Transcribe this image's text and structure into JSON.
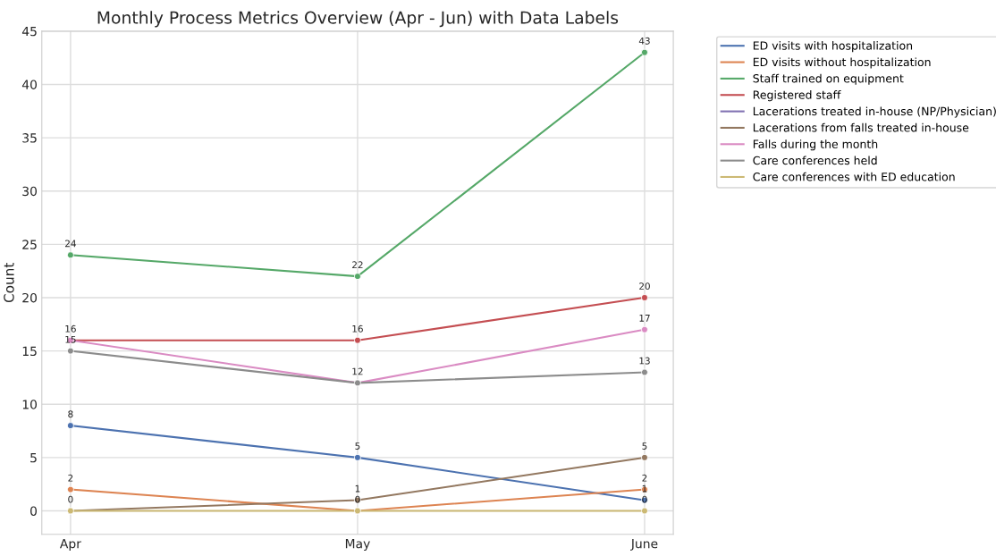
{
  "chart_data": {
    "type": "line",
    "title": "Monthly Process Metrics Overview (Apr - Jun) with Data Labels",
    "ylabel": "Count",
    "categories": [
      "Apr",
      "May",
      "June"
    ],
    "series": [
      {
        "name": "ED visits with hospitalization",
        "color": "#4c72b0",
        "values": [
          8,
          5,
          1
        ]
      },
      {
        "name": "ED visits without hospitalization",
        "color": "#dd8452",
        "values": [
          2,
          0,
          2
        ]
      },
      {
        "name": "Staff trained on equipment",
        "color": "#55a868",
        "values": [
          24,
          22,
          43
        ]
      },
      {
        "name": "Registered staff",
        "color": "#c44e52",
        "values": [
          16,
          16,
          20
        ]
      },
      {
        "name": "Lacerations treated in-house (NP/Physician)",
        "color": "#8172b3",
        "values": [
          null,
          null,
          null
        ]
      },
      {
        "name": "Lacerations from falls treated in-house",
        "color": "#937860",
        "values": [
          0,
          1,
          5
        ]
      },
      {
        "name": "Falls during the month",
        "color": "#da8bc3",
        "values": [
          16,
          12,
          17
        ],
        "value_labels": [
          null,
          "12",
          "17"
        ]
      },
      {
        "name": "Care conferences held",
        "color": "#8c8c8c",
        "values": [
          15,
          12,
          13
        ],
        "value_labels": [
          "15",
          null,
          "13"
        ]
      },
      {
        "name": "Care conferences with ED education",
        "color": "#ccb974",
        "values": [
          0,
          0,
          0
        ],
        "value_labels": [
          null,
          null,
          "0"
        ]
      }
    ],
    "ylim": [
      -2.2,
      45
    ],
    "yticks": [
      0,
      5,
      10,
      15,
      20,
      25,
      30,
      35,
      40,
      45
    ],
    "grid": true,
    "legend": "top right",
    "marker": "circle",
    "data_labels": true
  }
}
